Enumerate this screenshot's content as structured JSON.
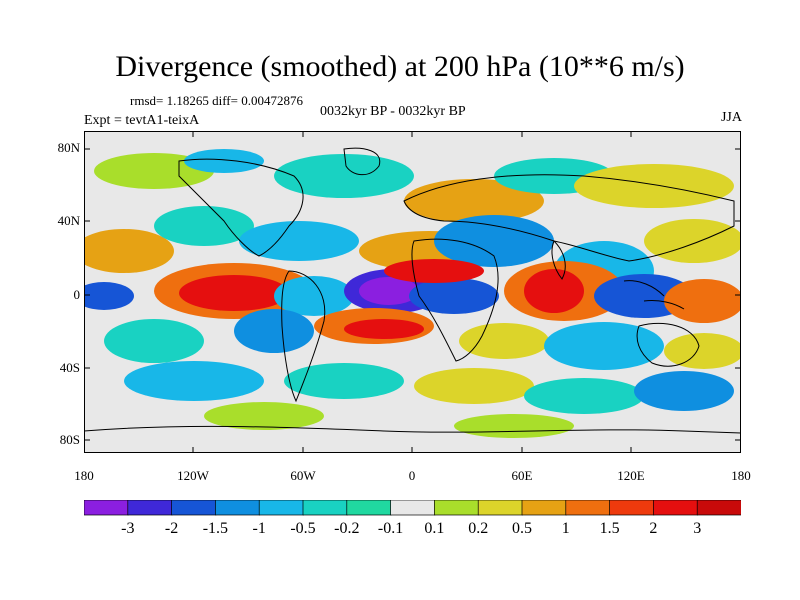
{
  "title": "Divergence (smoothed) at 200 hPa (10**6 m/s)",
  "stats": "rmsd= 1.18265 diff= 0.00472876",
  "expt": "Expt = tevtA1-teixA",
  "period": "0032kyr BP - 0032kyr BP",
  "season": "JJA",
  "y_ticks": [
    "80N",
    "40N",
    "0",
    "40S",
    "80S"
  ],
  "x_ticks": [
    "180",
    "120W",
    "60W",
    "0",
    "60E",
    "120E",
    "180"
  ],
  "colorbar": {
    "labels": [
      "-3",
      "-2",
      "-1.5",
      "-1",
      "-0.5",
      "-0.2",
      "-0.1",
      "0.1",
      "0.2",
      "0.5",
      "1",
      "1.5",
      "2",
      "3"
    ],
    "colors": [
      "#8b1fe0",
      "#3f28d8",
      "#1655d6",
      "#0f8fe0",
      "#18b7e8",
      "#19d2c2",
      "#20d8a0",
      "#e8e8e8",
      "#a9de2b",
      "#dcd42a",
      "#e6a214",
      "#ef6f0f",
      "#ee3a0d",
      "#e50f0f",
      "#c80a0a"
    ]
  },
  "colors": {
    "land_line": "#000000",
    "background": "#ffffff"
  }
}
